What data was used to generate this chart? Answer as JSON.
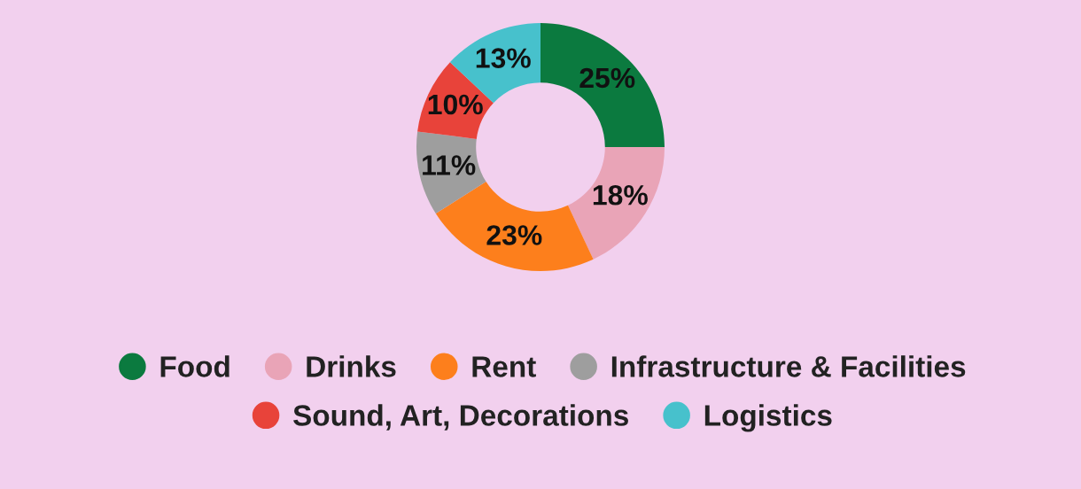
{
  "chart_data": {
    "type": "donut",
    "categories": [
      "Food",
      "Drinks",
      "Rent",
      "Infrastructure & Facilities",
      "Sound, Art, Decorations",
      "Logistics"
    ],
    "values": [
      25,
      18,
      23,
      11,
      10,
      13
    ],
    "colors": [
      "#0b7a3f",
      "#e9a4b7",
      "#fd7f1c",
      "#9e9e9e",
      "#e8433a",
      "#47c1cc"
    ],
    "value_labels": [
      "25%",
      "18%",
      "23%",
      "11%",
      "10%",
      "13%"
    ],
    "legend": "bottom"
  }
}
